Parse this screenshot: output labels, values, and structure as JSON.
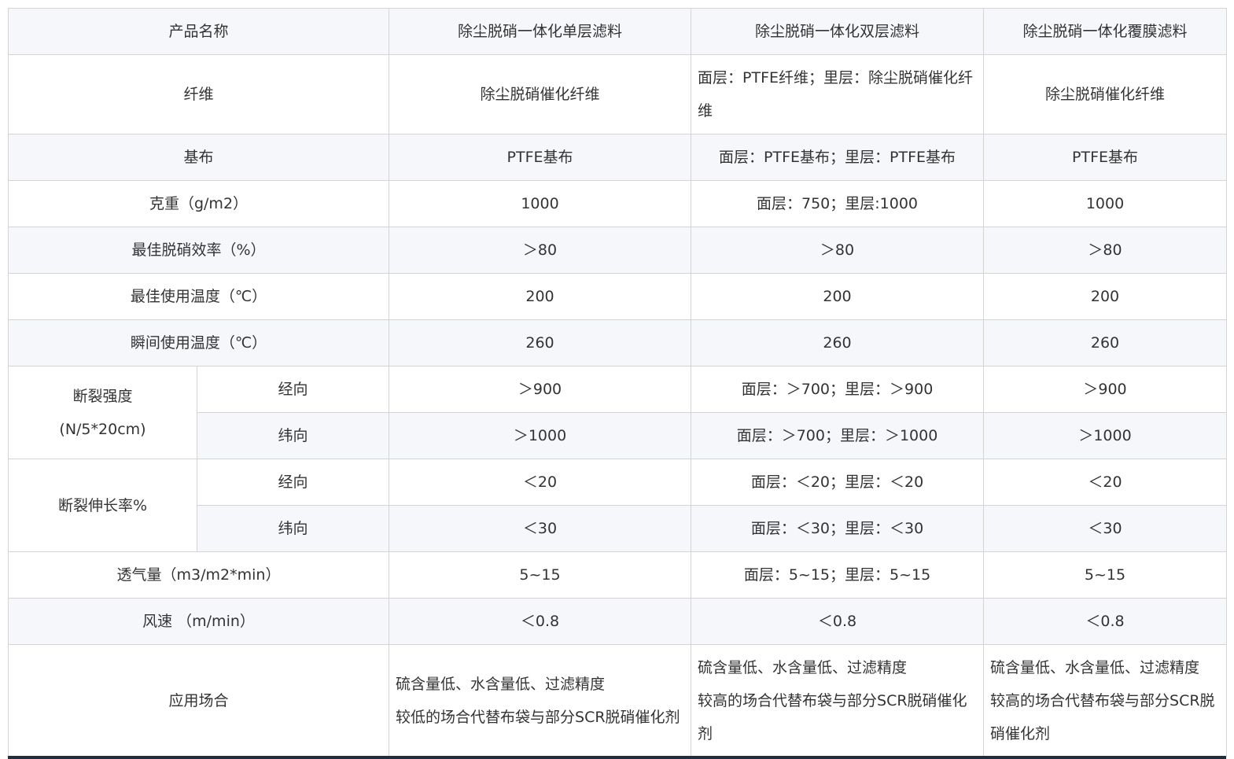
{
  "header": [
    "产品名称",
    "除尘脱硝一体化单层滤料",
    "除尘脱硝一体化双层滤料",
    "除尘脱硝一体化覆膜滤料"
  ],
  "rows": {
    "fiber": {
      "label": "纤维",
      "values": [
        "除尘脱硝催化纤维",
        "面层：PTFE纤维；里层：除尘脱硝催化纤维",
        "除尘脱硝催化纤维"
      ]
    },
    "base": {
      "label": "基布",
      "values": [
        "PTFE基布",
        "面层：PTFE基布；里层：PTFE基布",
        "PTFE基布"
      ]
    },
    "weight": {
      "label": "克重（g/m2）",
      "values": [
        "1000",
        "面层：750；里层:1000",
        "1000"
      ]
    },
    "efficiency": {
      "label": "最佳脱硝效率（%）",
      "values": [
        "＞80",
        "＞80",
        "＞80"
      ]
    },
    "temp": {
      "label": "最佳使用温度（℃）",
      "values": [
        "200",
        "200",
        "200"
      ]
    },
    "peak_temp": {
      "label": "瞬间使用温度（℃）",
      "values": [
        "260",
        "260",
        "260"
      ]
    },
    "strength": {
      "label": "断裂强度\n(N/5*20cm)",
      "warp": {
        "label": "经向",
        "values": [
          "＞900",
          "面层：＞700；里层：＞900",
          "＞900"
        ]
      },
      "weft": {
        "label": "纬向",
        "values": [
          "＞1000",
          "面层：＞700；里层：＞1000",
          "＞1000"
        ]
      }
    },
    "elongation": {
      "label": "断裂伸长率%",
      "warp": {
        "label": "经向",
        "values": [
          "＜20",
          "面层：＜20；里层：＜20",
          "＜20"
        ]
      },
      "weft": {
        "label": "纬向",
        "values": [
          "＜30",
          "面层：＜30；里层：＜30",
          "＜30"
        ]
      }
    },
    "air": {
      "label": "透气量（m3/m2*min）",
      "values": [
        "5~15",
        "面层：5~15；里层：5~15",
        "5~15"
      ]
    },
    "wind": {
      "label": "风速 （m/min）",
      "values": [
        "＜0.8",
        "＜0.8",
        "＜0.8"
      ]
    },
    "application": {
      "label": "应用场合",
      "values": [
        "硫含量低、水含量低、过滤精度\n较低的场合代替布袋与部分SCR脱硝催化剂",
        "硫含量低、水含量低、过滤精度\n较高的场合代替布袋与部分SCR脱硝催化剂",
        "硫含量低、水含量低、过滤精度\n较高的场合代替布袋与部分SCR脱硝催化剂"
      ]
    }
  }
}
